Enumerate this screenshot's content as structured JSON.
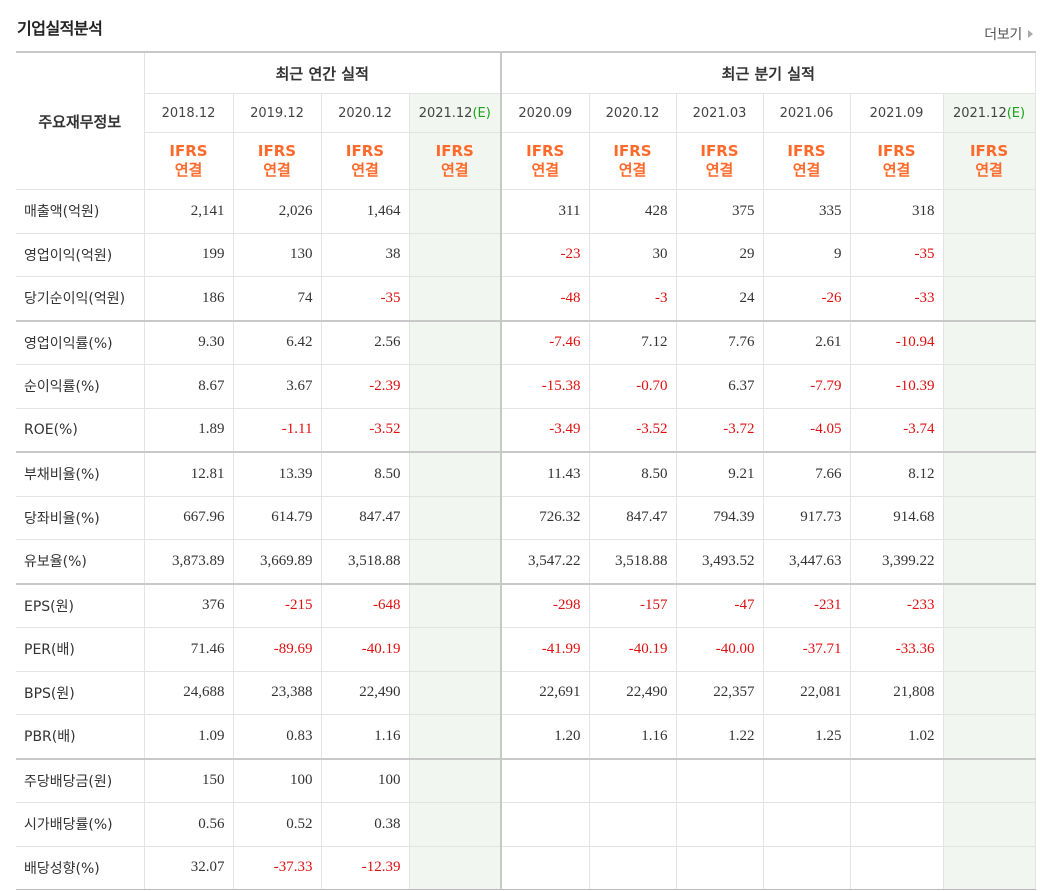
{
  "title": "기업실적분석",
  "more_label": "더보기",
  "header": {
    "row_label": "주요재무정보",
    "annual_label": "최근 연간 실적",
    "quarter_label": "최근 분기 실적",
    "periods": [
      {
        "label": "2018.12",
        "est": ""
      },
      {
        "label": "2019.12",
        "est": ""
      },
      {
        "label": "2020.12",
        "est": ""
      },
      {
        "label": "2021.12",
        "est": "(E)"
      },
      {
        "label": "2020.09",
        "est": ""
      },
      {
        "label": "2020.12",
        "est": ""
      },
      {
        "label": "2021.03",
        "est": ""
      },
      {
        "label": "2021.06",
        "est": ""
      },
      {
        "label": "2021.09",
        "est": ""
      },
      {
        "label": "2021.12",
        "est": "(E)"
      }
    ],
    "ifrs_top": "IFRS",
    "ifrs_bottom": "연결"
  },
  "rows": [
    {
      "label": "매출액(억원)",
      "values": [
        "2,141",
        "2,026",
        "1,464",
        "",
        "311",
        "428",
        "375",
        "335",
        "318",
        ""
      ]
    },
    {
      "label": "영업이익(억원)",
      "values": [
        "199",
        "130",
        "38",
        "",
        "-23",
        "30",
        "29",
        "9",
        "-35",
        ""
      ]
    },
    {
      "label": "당기순이익(억원)",
      "values": [
        "186",
        "74",
        "-35",
        "",
        "-48",
        "-3",
        "24",
        "-26",
        "-33",
        ""
      ]
    },
    {
      "label": "영업이익률(%)",
      "values": [
        "9.30",
        "6.42",
        "2.56",
        "",
        "-7.46",
        "7.12",
        "7.76",
        "2.61",
        "-10.94",
        ""
      ]
    },
    {
      "label": "순이익률(%)",
      "values": [
        "8.67",
        "3.67",
        "-2.39",
        "",
        "-15.38",
        "-0.70",
        "6.37",
        "-7.79",
        "-10.39",
        ""
      ]
    },
    {
      "label": "ROE(%)",
      "values": [
        "1.89",
        "-1.11",
        "-3.52",
        "",
        "-3.49",
        "-3.52",
        "-3.72",
        "-4.05",
        "-3.74",
        ""
      ]
    },
    {
      "label": "부채비율(%)",
      "values": [
        "12.81",
        "13.39",
        "8.50",
        "",
        "11.43",
        "8.50",
        "9.21",
        "7.66",
        "8.12",
        ""
      ]
    },
    {
      "label": "당좌비율(%)",
      "values": [
        "667.96",
        "614.79",
        "847.47",
        "",
        "726.32",
        "847.47",
        "794.39",
        "917.73",
        "914.68",
        ""
      ]
    },
    {
      "label": "유보율(%)",
      "values": [
        "3,873.89",
        "3,669.89",
        "3,518.88",
        "",
        "3,547.22",
        "3,518.88",
        "3,493.52",
        "3,447.63",
        "3,399.22",
        ""
      ]
    },
    {
      "label": "EPS(원)",
      "values": [
        "376",
        "-215",
        "-648",
        "",
        "-298",
        "-157",
        "-47",
        "-231",
        "-233",
        ""
      ]
    },
    {
      "label": "PER(배)",
      "values": [
        "71.46",
        "-89.69",
        "-40.19",
        "",
        "-41.99",
        "-40.19",
        "-40.00",
        "-37.71",
        "-33.36",
        ""
      ]
    },
    {
      "label": "BPS(원)",
      "values": [
        "24,688",
        "23,388",
        "22,490",
        "",
        "22,691",
        "22,490",
        "22,357",
        "22,081",
        "21,808",
        ""
      ]
    },
    {
      "label": "PBR(배)",
      "values": [
        "1.09",
        "0.83",
        "1.16",
        "",
        "1.20",
        "1.16",
        "1.22",
        "1.25",
        "1.02",
        ""
      ]
    },
    {
      "label": "주당배당금(원)",
      "values": [
        "150",
        "100",
        "100",
        "",
        "",
        "",
        "",
        "",
        "",
        ""
      ]
    },
    {
      "label": "시가배당률(%)",
      "values": [
        "0.56",
        "0.52",
        "0.38",
        "",
        "",
        "",
        "",
        "",
        "",
        ""
      ]
    },
    {
      "label": "배당성향(%)",
      "values": [
        "32.07",
        "-37.33",
        "-12.39",
        "",
        "",
        "",
        "",
        "",
        "",
        ""
      ]
    }
  ],
  "colors": {
    "negative": "#e01010",
    "ifrs": "#ff6a2a",
    "estimate_bg": "#f1f6f1",
    "estimate_mark": "#19a319"
  }
}
